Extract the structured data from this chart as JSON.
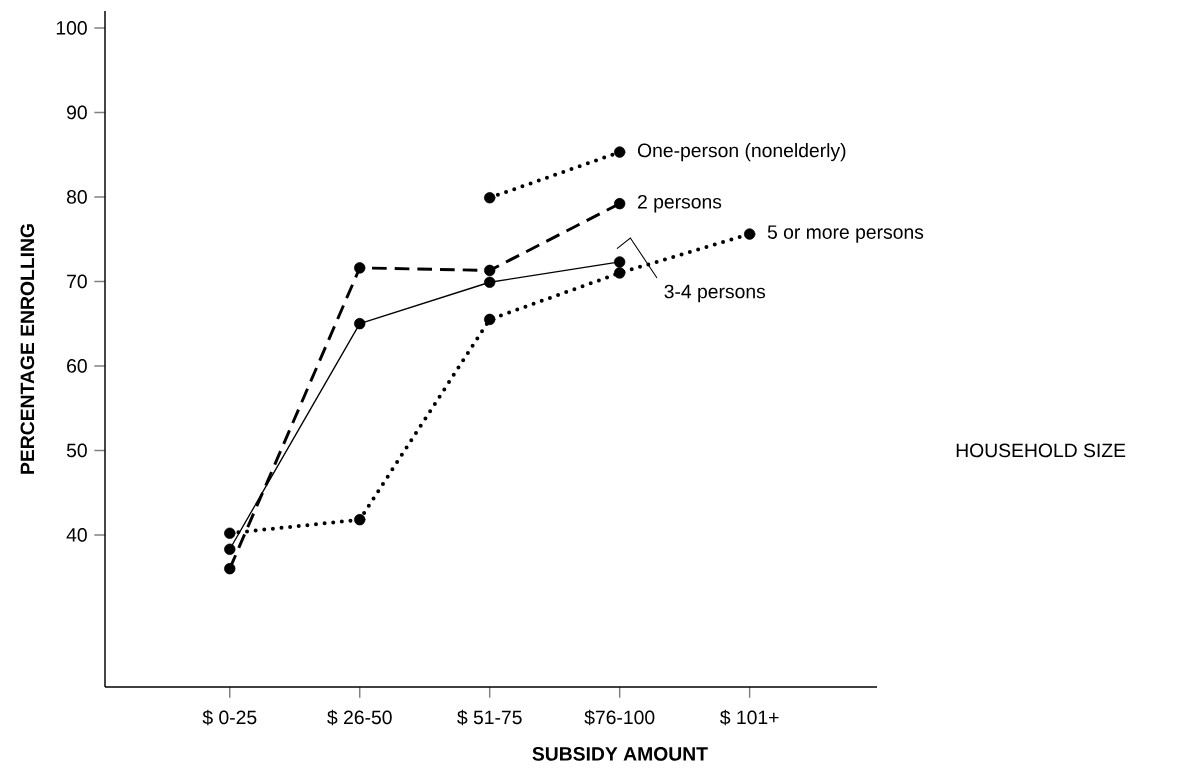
{
  "chart_data": {
    "type": "line",
    "xlabel": "SUBSIDY AMOUNT",
    "ylabel": "PERCENTAGE ENROLLING",
    "legend_title": "HOUSEHOLD SIZE",
    "categories": [
      "$ 0-25",
      "$ 26-50",
      "$ 51-75",
      "$76-100",
      "$ 101+"
    ],
    "ylim": [
      22,
      102
    ],
    "yticks": [
      40,
      50,
      60,
      70,
      80,
      90,
      100
    ],
    "marker": "circle",
    "grid": false,
    "series": [
      {
        "name": "One-person (nonelderly)",
        "color": "#000000",
        "line_style": "dotted",
        "values": [
          null,
          null,
          79.9,
          85.3,
          null
        ]
      },
      {
        "name": "2 persons",
        "color": "#000000",
        "line_style": "dashed",
        "values": [
          36.0,
          71.6,
          71.3,
          79.2,
          null
        ]
      },
      {
        "name": "3-4 persons",
        "color": "#000000",
        "line_style": "solid",
        "values": [
          38.3,
          65.0,
          69.9,
          72.3,
          null
        ]
      },
      {
        "name": "5 or more persons",
        "color": "#000000",
        "line_style": "dotted",
        "values": [
          40.2,
          41.8,
          65.5,
          71.0,
          75.6
        ]
      }
    ]
  }
}
